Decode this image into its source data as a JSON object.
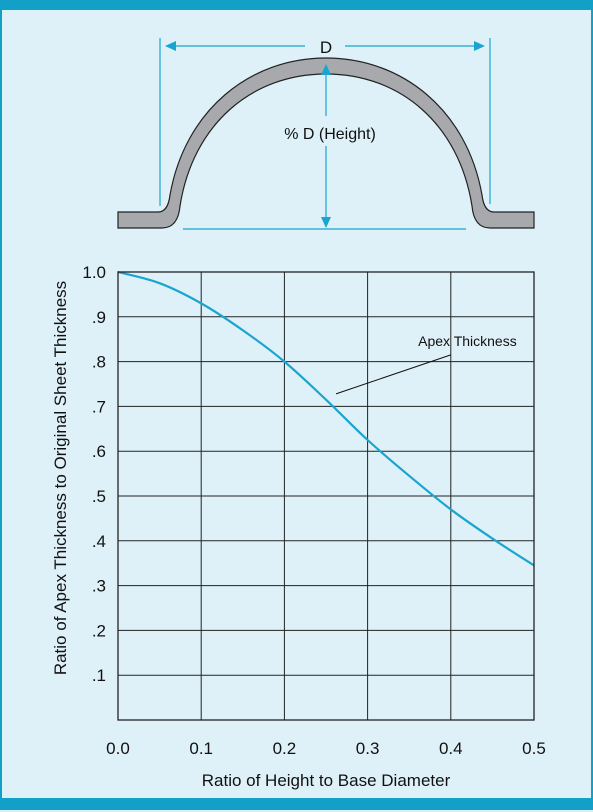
{
  "diagram": {
    "diameter_label": "D",
    "height_label": "% D (Height)"
  },
  "chart_data": {
    "type": "line",
    "xlabel": "Ratio of Height to Base Diameter",
    "ylabel": "Ratio of Apex Thickness to Original Sheet Thickness",
    "xlim": [
      0,
      0.5
    ],
    "ylim": [
      0,
      1.0
    ],
    "x_ticks": [
      "0.0",
      "0.1",
      "0.2",
      "0.3",
      "0.4",
      "0.5"
    ],
    "y_ticks": [
      "1.0",
      ".9",
      ".8",
      ".7",
      ".6",
      ".5",
      ".4",
      ".3",
      ".2",
      ".1"
    ],
    "grid": true,
    "series": [
      {
        "name": "Apex Thickness",
        "x": [
          0.0,
          0.05,
          0.1,
          0.15,
          0.2,
          0.25,
          0.3,
          0.35,
          0.4,
          0.45,
          0.5
        ],
        "y": [
          1.0,
          0.975,
          0.93,
          0.87,
          0.8,
          0.715,
          0.625,
          0.545,
          0.47,
          0.405,
          0.345
        ]
      }
    ],
    "annotation": "Apex Thickness",
    "line_color": "#19a5cf"
  }
}
